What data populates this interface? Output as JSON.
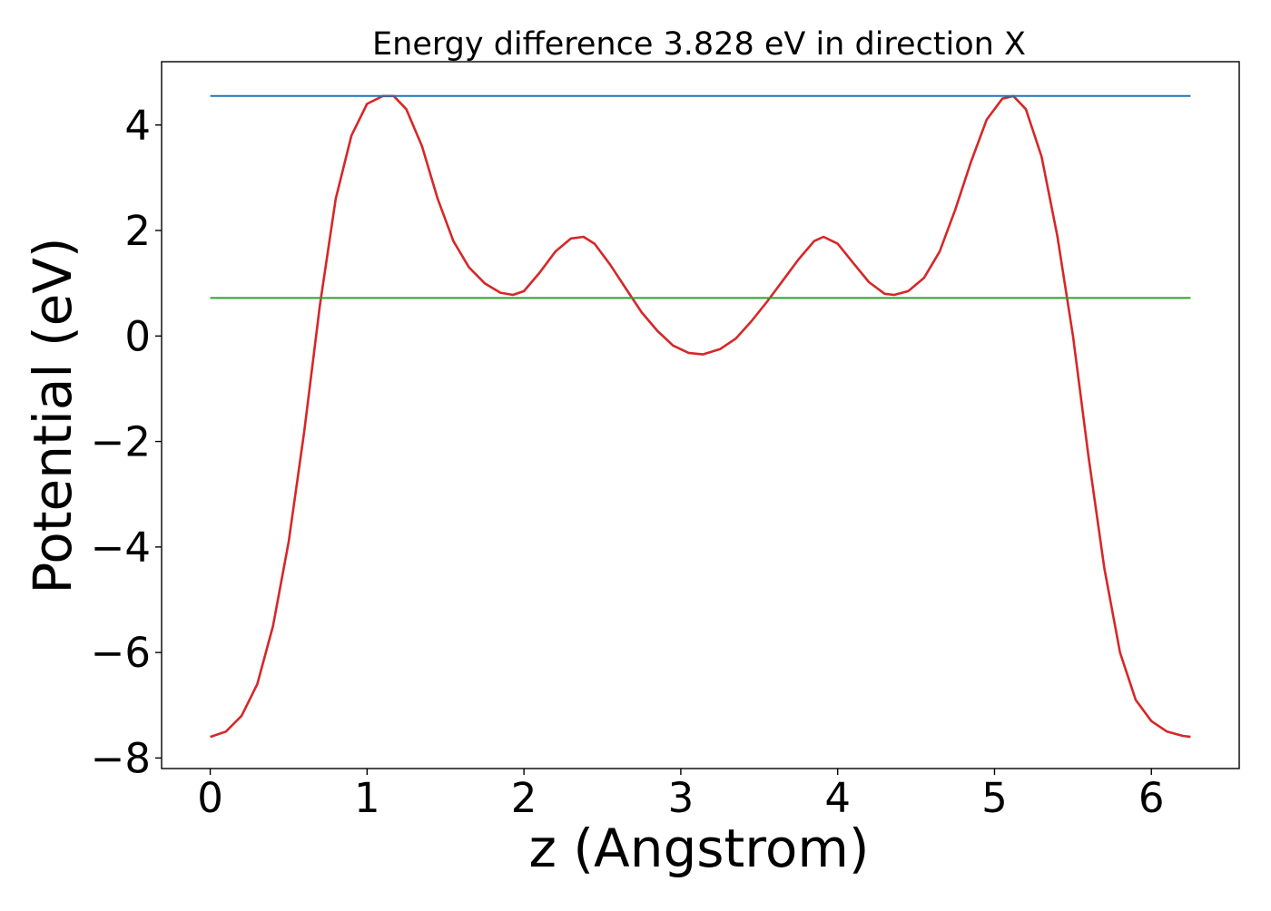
{
  "chart_data": {
    "type": "line",
    "title": "Energy difference 3.828 eV in direction X",
    "xlabel": "z (Angstrom)",
    "ylabel": "Potential (eV)",
    "xlim": [
      -0.31,
      6.56
    ],
    "ylim": [
      -8.2,
      5.2
    ],
    "xticks": [
      0,
      1,
      2,
      3,
      4,
      5,
      6
    ],
    "yticks": [
      -8,
      -6,
      -4,
      -2,
      0,
      2,
      4
    ],
    "xtick_labels": [
      "0",
      "1",
      "2",
      "3",
      "4",
      "5",
      "6"
    ],
    "ytick_labels": [
      "−8",
      "−6",
      "−4",
      "−2",
      "0",
      "2",
      "4"
    ],
    "grid": false,
    "series": [
      {
        "color": "#d62728",
        "x": [
          0.0,
          0.1,
          0.2,
          0.3,
          0.4,
          0.5,
          0.6,
          0.7,
          0.8,
          0.9,
          1.0,
          1.1,
          1.17,
          1.25,
          1.35,
          1.45,
          1.55,
          1.65,
          1.75,
          1.85,
          1.93,
          2.0,
          2.1,
          2.2,
          2.3,
          2.38,
          2.45,
          2.55,
          2.65,
          2.75,
          2.85,
          2.95,
          3.05,
          3.14,
          3.25,
          3.35,
          3.45,
          3.55,
          3.65,
          3.75,
          3.85,
          3.91,
          4.0,
          4.1,
          4.2,
          4.3,
          4.36,
          4.45,
          4.55,
          4.65,
          4.75,
          4.85,
          4.95,
          5.05,
          5.12,
          5.2,
          5.3,
          5.4,
          5.5,
          5.6,
          5.7,
          5.8,
          5.9,
          6.0,
          6.1,
          6.2,
          6.25
        ],
        "y": [
          -7.6,
          -7.5,
          -7.2,
          -6.6,
          -5.5,
          -3.9,
          -1.8,
          0.6,
          2.6,
          3.8,
          4.4,
          4.55,
          4.55,
          4.3,
          3.6,
          2.6,
          1.8,
          1.3,
          1.0,
          0.82,
          0.78,
          0.85,
          1.2,
          1.6,
          1.85,
          1.88,
          1.75,
          1.35,
          0.9,
          0.45,
          0.1,
          -0.18,
          -0.32,
          -0.35,
          -0.25,
          -0.05,
          0.28,
          0.65,
          1.05,
          1.45,
          1.8,
          1.88,
          1.75,
          1.38,
          1.02,
          0.8,
          0.78,
          0.85,
          1.1,
          1.6,
          2.4,
          3.3,
          4.1,
          4.5,
          4.55,
          4.3,
          3.4,
          1.9,
          0.0,
          -2.3,
          -4.4,
          -6.0,
          -6.9,
          -7.3,
          -7.5,
          -7.58,
          -7.6
        ]
      },
      {
        "color": "#1f77b4",
        "x": [
          0.0,
          6.25
        ],
        "y": [
          4.55,
          4.55
        ]
      },
      {
        "color": "#2ca02c",
        "x": [
          0.0,
          6.25
        ],
        "y": [
          0.72,
          0.72
        ]
      }
    ]
  }
}
